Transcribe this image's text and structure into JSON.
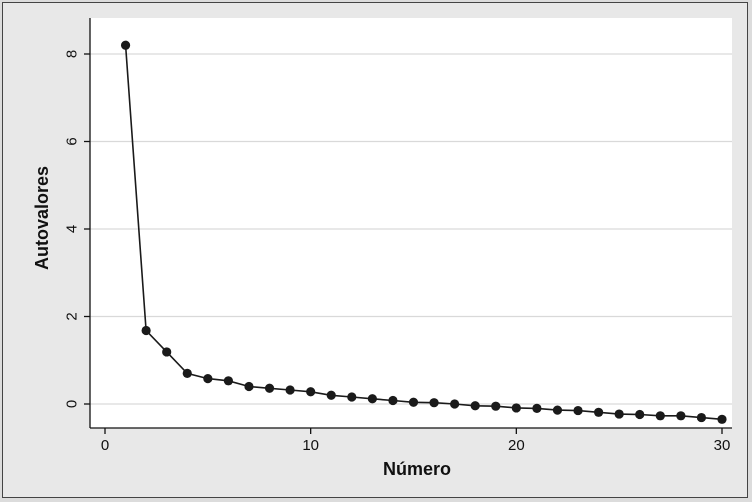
{
  "chart_data": {
    "type": "line",
    "title": "",
    "xlabel": "Número",
    "ylabel": "Autovalores",
    "xlim": [
      0,
      30
    ],
    "ylim": [
      0,
      8
    ],
    "xticks": [
      0,
      10,
      20,
      30
    ],
    "yticks": [
      0,
      2,
      4,
      6,
      8
    ],
    "grid": "horizontal",
    "legend": "none",
    "colors": {
      "page_background": "#dcdcdc",
      "plot_background": "#ffffff",
      "frame_background": "#e8e8e8",
      "line": "#1a1a1a",
      "marker": "#1a1a1a",
      "grid": "#d9d9d9"
    },
    "series": [
      {
        "x": [
          1,
          2,
          3,
          4,
          5,
          6,
          7,
          8,
          9,
          10,
          11,
          12,
          13,
          14,
          15,
          16,
          17,
          18,
          19,
          20,
          21,
          22,
          23,
          24,
          25,
          26,
          27,
          28,
          29,
          30
        ],
        "values": [
          8.2,
          1.68,
          1.19,
          0.7,
          0.58,
          0.53,
          0.4,
          0.36,
          0.32,
          0.28,
          0.2,
          0.16,
          0.12,
          0.08,
          0.04,
          0.03,
          0.0,
          -0.04,
          -0.05,
          -0.09,
          -0.1,
          -0.14,
          -0.15,
          -0.19,
          -0.23,
          -0.24,
          -0.27,
          -0.27,
          -0.31,
          -0.35
        ]
      }
    ]
  }
}
